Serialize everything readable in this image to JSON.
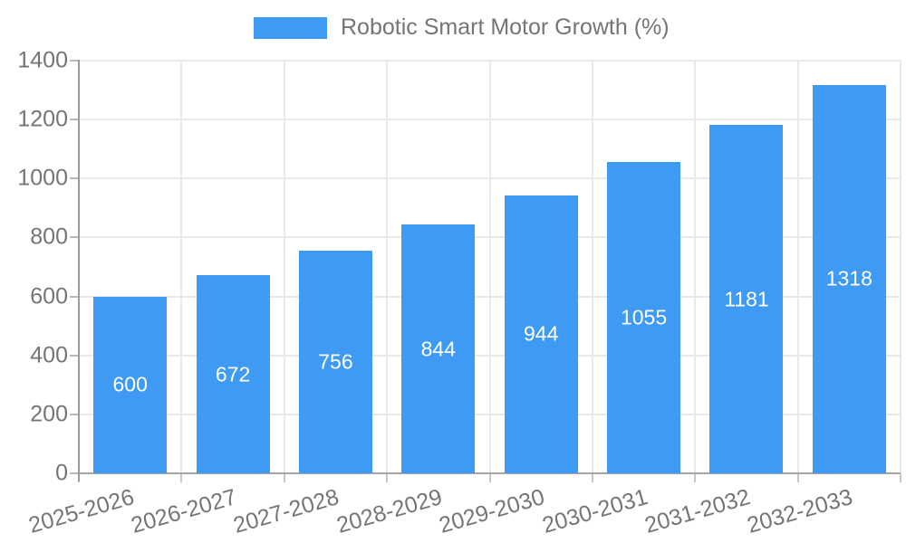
{
  "legend": {
    "series_label": "Robotic Smart Motor Growth (%)"
  },
  "chart_data": {
    "type": "bar",
    "title": "Robotic Smart Motor Growth (%)",
    "categories": [
      "2025-2026",
      "2026-2027",
      "2027-2028",
      "2028-2029",
      "2029-2030",
      "2030-2031",
      "2031-2032",
      "2032-2033"
    ],
    "series": [
      {
        "name": "Robotic Smart Motor Growth (%)",
        "values": [
          600,
          672,
          756,
          844,
          944,
          1055,
          1181,
          1318
        ]
      }
    ],
    "xlabel": "",
    "ylabel": "",
    "ylim": [
      0,
      1400
    ],
    "ytick_step": 200,
    "grid": true,
    "legend_position": "top",
    "bar_color": "#3e9af2",
    "bar_label_color": "#ffffff",
    "axis_text_color": "#757575"
  }
}
